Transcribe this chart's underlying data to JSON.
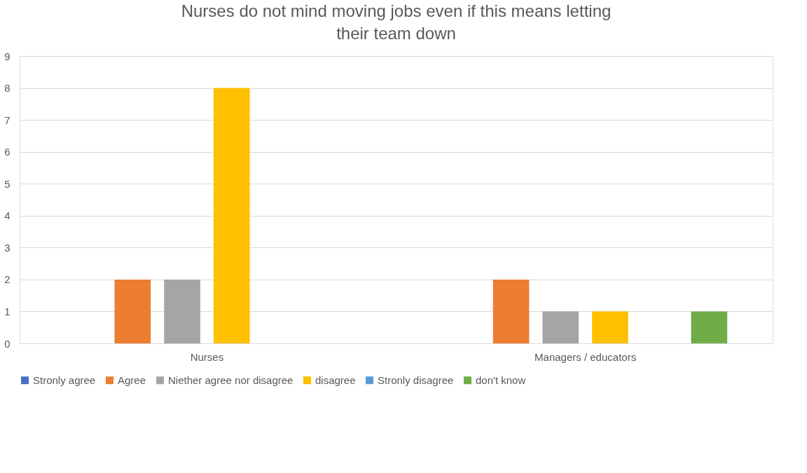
{
  "chart_data": {
    "type": "bar",
    "title": "Nurses do not mind moving jobs even if this means letting their team down",
    "categories": [
      "Nurses",
      "Managers / educators"
    ],
    "series": [
      {
        "name": "Stronly agree",
        "color": "#4472c4",
        "values": [
          0,
          0
        ]
      },
      {
        "name": "Agree",
        "color": "#ed7d31",
        "values": [
          2,
          2
        ]
      },
      {
        "name": "Niether agree nor disagree",
        "color": "#a5a5a5",
        "values": [
          2,
          1
        ]
      },
      {
        "name": "disagree",
        "color": "#ffc000",
        "values": [
          8,
          1
        ]
      },
      {
        "name": "Stronly disagree",
        "color": "#5b9bd5",
        "values": [
          0,
          0
        ]
      },
      {
        "name": "don't know",
        "color": "#70ad47",
        "values": [
          0,
          1
        ]
      }
    ],
    "ylim": [
      0,
      9
    ],
    "yticks": [
      0,
      1,
      2,
      3,
      4,
      5,
      6,
      7,
      8,
      9
    ],
    "grid": "y",
    "legend": "bottom"
  }
}
